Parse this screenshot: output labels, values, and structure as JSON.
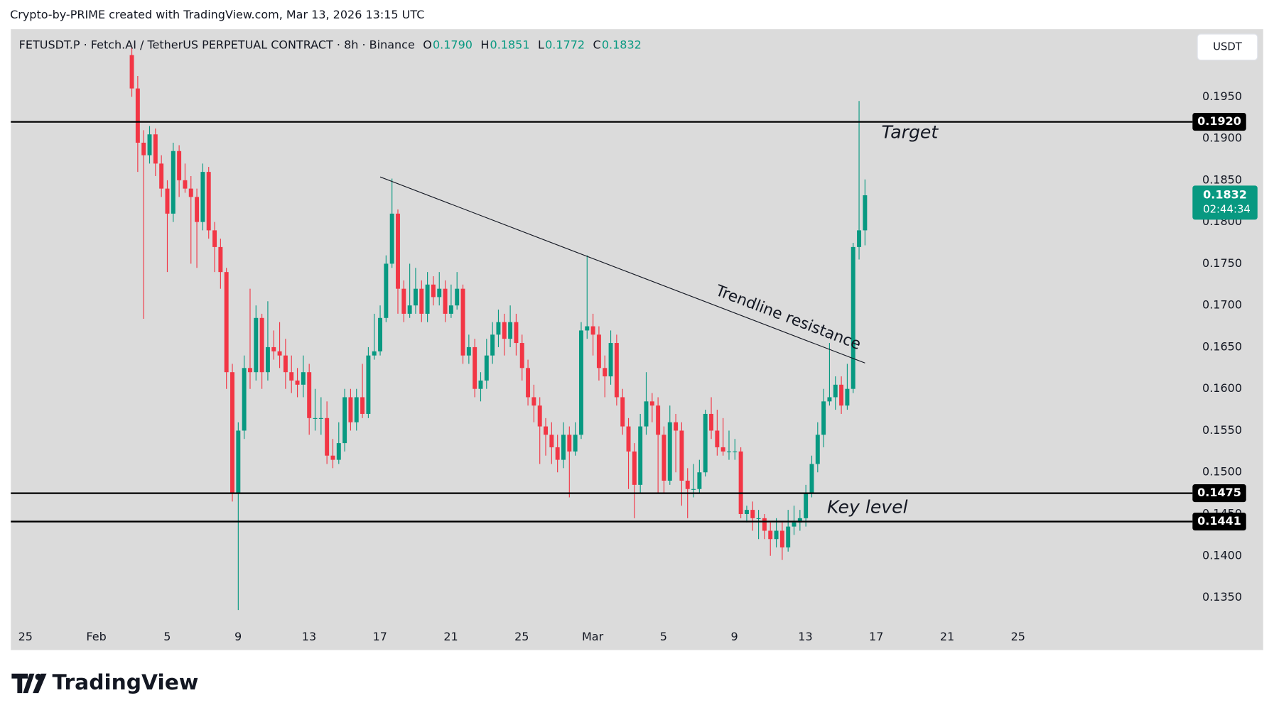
{
  "header": "Crypto-by-PRIME created with TradingView.com, Mar 13, 2026 13:15 UTC",
  "logo": "TradingView",
  "currency_button": "USDT",
  "chart_data": {
    "type": "candlestick",
    "symbol": "FETUSDT.P · Fetch.AI / TetherUS PERPETUAL CONTRACT · 8h · Binance",
    "ohlc_legend": [
      {
        "key": "O",
        "value": "0.1790"
      },
      {
        "key": "H",
        "value": "0.1851"
      },
      {
        "key": "L",
        "value": "0.1772"
      },
      {
        "key": "C",
        "value": "0.1832"
      }
    ],
    "up_color": "#089981",
    "down_color": "#f23645",
    "ylim": [
      0.1287,
      0.2031
    ],
    "yticks": [
      {
        "value": 0.135,
        "label": "0.1350"
      },
      {
        "value": 0.14,
        "label": "0.1400"
      },
      {
        "value": 0.145,
        "label": "0.1450"
      },
      {
        "value": 0.15,
        "label": "0.1500"
      },
      {
        "value": 0.155,
        "label": "0.1550"
      },
      {
        "value": 0.16,
        "label": "0.1600"
      },
      {
        "value": 0.165,
        "label": "0.1650"
      },
      {
        "value": 0.17,
        "label": "0.1700"
      },
      {
        "value": 0.175,
        "label": "0.1750"
      },
      {
        "value": 0.18,
        "label": "0.1800"
      },
      {
        "value": 0.185,
        "label": "0.1850"
      },
      {
        "value": 0.19,
        "label": "0.1900"
      },
      {
        "value": 0.195,
        "label": "0.1950"
      }
    ],
    "categories": [
      "25",
      "Feb",
      "5",
      "9",
      "13",
      "17",
      "21",
      "25",
      "Mar",
      "5",
      "9",
      "13",
      "17",
      "21",
      "25"
    ],
    "levels": [
      {
        "value": 0.192,
        "label": "0.1920"
      },
      {
        "value": 0.1475,
        "label": "0.1475"
      },
      {
        "value": 0.1441,
        "label": "0.1441"
      }
    ],
    "current_price": {
      "value": 0.1832,
      "label": "0.1832",
      "countdown": "02:44:34"
    },
    "trendline": {
      "start_candle": 42,
      "start_price": 0.1854,
      "end_candle": 124,
      "end_price": 0.1631
    },
    "annotations": [
      "Target",
      "Trendline resistance",
      "Key level"
    ],
    "candles": [
      [
        0.2,
        0.201,
        0.195,
        0.196
      ],
      [
        0.196,
        0.1975,
        0.186,
        0.1895
      ],
      [
        0.1895,
        0.191,
        0.1684,
        0.188
      ],
      [
        0.188,
        0.1915,
        0.187,
        0.1905
      ],
      [
        0.1905,
        0.1912,
        0.1855,
        0.187
      ],
      [
        0.187,
        0.188,
        0.183,
        0.184
      ],
      [
        0.184,
        0.185,
        0.174,
        0.181
      ],
      [
        0.181,
        0.1895,
        0.18,
        0.1885
      ],
      [
        0.1885,
        0.1892,
        0.183,
        0.185
      ],
      [
        0.185,
        0.187,
        0.1835,
        0.184
      ],
      [
        0.184,
        0.1855,
        0.175,
        0.183
      ],
      [
        0.183,
        0.184,
        0.1745,
        0.18
      ],
      [
        0.18,
        0.187,
        0.179,
        0.186
      ],
      [
        0.186,
        0.1866,
        0.178,
        0.179
      ],
      [
        0.179,
        0.18,
        0.174,
        0.177
      ],
      [
        0.177,
        0.178,
        0.172,
        0.174
      ],
      [
        0.174,
        0.1745,
        0.16,
        0.162
      ],
      [
        0.162,
        0.163,
        0.1465,
        0.1475
      ],
      [
        0.1475,
        0.156,
        0.1335,
        0.155
      ],
      [
        0.155,
        0.164,
        0.154,
        0.1625
      ],
      [
        0.1625,
        0.172,
        0.16,
        0.162
      ],
      [
        0.162,
        0.17,
        0.161,
        0.1685
      ],
      [
        0.1685,
        0.169,
        0.16,
        0.162
      ],
      [
        0.162,
        0.1705,
        0.161,
        0.165
      ],
      [
        0.165,
        0.167,
        0.1635,
        0.1645
      ],
      [
        0.1645,
        0.168,
        0.1625,
        0.164
      ],
      [
        0.164,
        0.166,
        0.16,
        0.162
      ],
      [
        0.162,
        0.164,
        0.1595,
        0.161
      ],
      [
        0.161,
        0.1625,
        0.159,
        0.1605
      ],
      [
        0.1605,
        0.164,
        0.159,
        0.162
      ],
      [
        0.162,
        0.163,
        0.1545,
        0.1565
      ],
      [
        0.1565,
        0.16,
        0.155,
        0.1565
      ],
      [
        0.1565,
        0.159,
        0.1545,
        0.1565
      ],
      [
        0.1565,
        0.1585,
        0.151,
        0.152
      ],
      [
        0.152,
        0.154,
        0.1505,
        0.1515
      ],
      [
        0.1515,
        0.156,
        0.151,
        0.1535
      ],
      [
        0.1535,
        0.16,
        0.1525,
        0.159
      ],
      [
        0.159,
        0.16,
        0.155,
        0.156
      ],
      [
        0.156,
        0.16,
        0.155,
        0.159
      ],
      [
        0.159,
        0.163,
        0.1565,
        0.157
      ],
      [
        0.157,
        0.165,
        0.1565,
        0.164
      ],
      [
        0.164,
        0.169,
        0.1635,
        0.1645
      ],
      [
        0.1645,
        0.17,
        0.164,
        0.1685
      ],
      [
        0.1685,
        0.176,
        0.168,
        0.175
      ],
      [
        0.175,
        0.1852,
        0.1745,
        0.181
      ],
      [
        0.181,
        0.1815,
        0.169,
        0.172
      ],
      [
        0.172,
        0.173,
        0.168,
        0.169
      ],
      [
        0.169,
        0.175,
        0.1685,
        0.17
      ],
      [
        0.17,
        0.1745,
        0.169,
        0.172
      ],
      [
        0.172,
        0.173,
        0.168,
        0.169
      ],
      [
        0.169,
        0.174,
        0.168,
        0.1725
      ],
      [
        0.1725,
        0.1735,
        0.17,
        0.171
      ],
      [
        0.171,
        0.174,
        0.17,
        0.172
      ],
      [
        0.172,
        0.173,
        0.168,
        0.169
      ],
      [
        0.169,
        0.1725,
        0.1685,
        0.17
      ],
      [
        0.17,
        0.174,
        0.1695,
        0.172
      ],
      [
        0.172,
        0.1725,
        0.163,
        0.164
      ],
      [
        0.164,
        0.1665,
        0.163,
        0.165
      ],
      [
        0.165,
        0.166,
        0.159,
        0.16
      ],
      [
        0.16,
        0.162,
        0.1585,
        0.161
      ],
      [
        0.161,
        0.166,
        0.16,
        0.164
      ],
      [
        0.164,
        0.168,
        0.163,
        0.1665
      ],
      [
        0.1665,
        0.1695,
        0.165,
        0.168
      ],
      [
        0.168,
        0.169,
        0.164,
        0.166
      ],
      [
        0.166,
        0.17,
        0.165,
        0.168
      ],
      [
        0.168,
        0.169,
        0.164,
        0.1655
      ],
      [
        0.1655,
        0.1665,
        0.161,
        0.1625
      ],
      [
        0.1625,
        0.1635,
        0.158,
        0.159
      ],
      [
        0.159,
        0.1605,
        0.156,
        0.158
      ],
      [
        0.158,
        0.159,
        0.151,
        0.1555
      ],
      [
        0.1555,
        0.1565,
        0.152,
        0.1545
      ],
      [
        0.1545,
        0.156,
        0.151,
        0.153
      ],
      [
        0.153,
        0.1545,
        0.15,
        0.1515
      ],
      [
        0.1515,
        0.156,
        0.1505,
        0.1545
      ],
      [
        0.1545,
        0.1555,
        0.147,
        0.1525
      ],
      [
        0.1525,
        0.156,
        0.152,
        0.1545
      ],
      [
        0.1545,
        0.168,
        0.154,
        0.167
      ],
      [
        0.167,
        0.176,
        0.166,
        0.1675
      ],
      [
        0.1675,
        0.169,
        0.164,
        0.1665
      ],
      [
        0.1665,
        0.1675,
        0.161,
        0.1625
      ],
      [
        0.1625,
        0.164,
        0.159,
        0.1615
      ],
      [
        0.1615,
        0.167,
        0.1605,
        0.1655
      ],
      [
        0.1655,
        0.1665,
        0.158,
        0.159
      ],
      [
        0.159,
        0.16,
        0.1545,
        0.1555
      ],
      [
        0.1555,
        0.1565,
        0.148,
        0.1525
      ],
      [
        0.1525,
        0.1535,
        0.1445,
        0.1485
      ],
      [
        0.1485,
        0.157,
        0.1475,
        0.1555
      ],
      [
        0.1555,
        0.162,
        0.1545,
        0.1585
      ],
      [
        0.1585,
        0.1595,
        0.156,
        0.158
      ],
      [
        0.158,
        0.159,
        0.1475,
        0.1545
      ],
      [
        0.1545,
        0.1555,
        0.1475,
        0.149
      ],
      [
        0.149,
        0.158,
        0.1485,
        0.156
      ],
      [
        0.156,
        0.157,
        0.15,
        0.155
      ],
      [
        0.155,
        0.156,
        0.146,
        0.149
      ],
      [
        0.149,
        0.1505,
        0.1445,
        0.148
      ],
      [
        0.148,
        0.151,
        0.147,
        0.148
      ],
      [
        0.148,
        0.1515,
        0.1475,
        0.15
      ],
      [
        0.15,
        0.1575,
        0.1495,
        0.157
      ],
      [
        0.157,
        0.159,
        0.154,
        0.155
      ],
      [
        0.155,
        0.1575,
        0.152,
        0.153
      ],
      [
        0.153,
        0.1565,
        0.152,
        0.1525
      ],
      [
        0.1525,
        0.155,
        0.1515,
        0.1525
      ],
      [
        0.1525,
        0.154,
        0.1515,
        0.1525
      ],
      [
        0.1525,
        0.153,
        0.1445,
        0.145
      ],
      [
        0.145,
        0.146,
        0.144,
        0.1455
      ],
      [
        0.1455,
        0.1465,
        0.143,
        0.1445
      ],
      [
        0.1445,
        0.1455,
        0.142,
        0.1445
      ],
      [
        0.1445,
        0.145,
        0.142,
        0.143
      ],
      [
        0.143,
        0.144,
        0.14,
        0.142
      ],
      [
        0.142,
        0.1445,
        0.141,
        0.143
      ],
      [
        0.143,
        0.144,
        0.1395,
        0.141
      ],
      [
        0.141,
        0.1455,
        0.1405,
        0.1435
      ],
      [
        0.1435,
        0.146,
        0.1425,
        0.144
      ],
      [
        0.144,
        0.1455,
        0.143,
        0.1445
      ],
      [
        0.1445,
        0.1485,
        0.1435,
        0.1475
      ],
      [
        0.1475,
        0.152,
        0.147,
        0.151
      ],
      [
        0.151,
        0.156,
        0.15,
        0.1545
      ],
      [
        0.1545,
        0.16,
        0.153,
        0.1585
      ],
      [
        0.1585,
        0.1655,
        0.158,
        0.159
      ],
      [
        0.159,
        0.1615,
        0.1575,
        0.1605
      ],
      [
        0.1605,
        0.1615,
        0.157,
        0.158
      ],
      [
        0.158,
        0.163,
        0.1575,
        0.16
      ],
      [
        0.16,
        0.1775,
        0.1595,
        0.177
      ],
      [
        0.177,
        0.1945,
        0.1755,
        0.179
      ],
      [
        0.179,
        0.1851,
        0.1772,
        0.1832
      ]
    ]
  }
}
